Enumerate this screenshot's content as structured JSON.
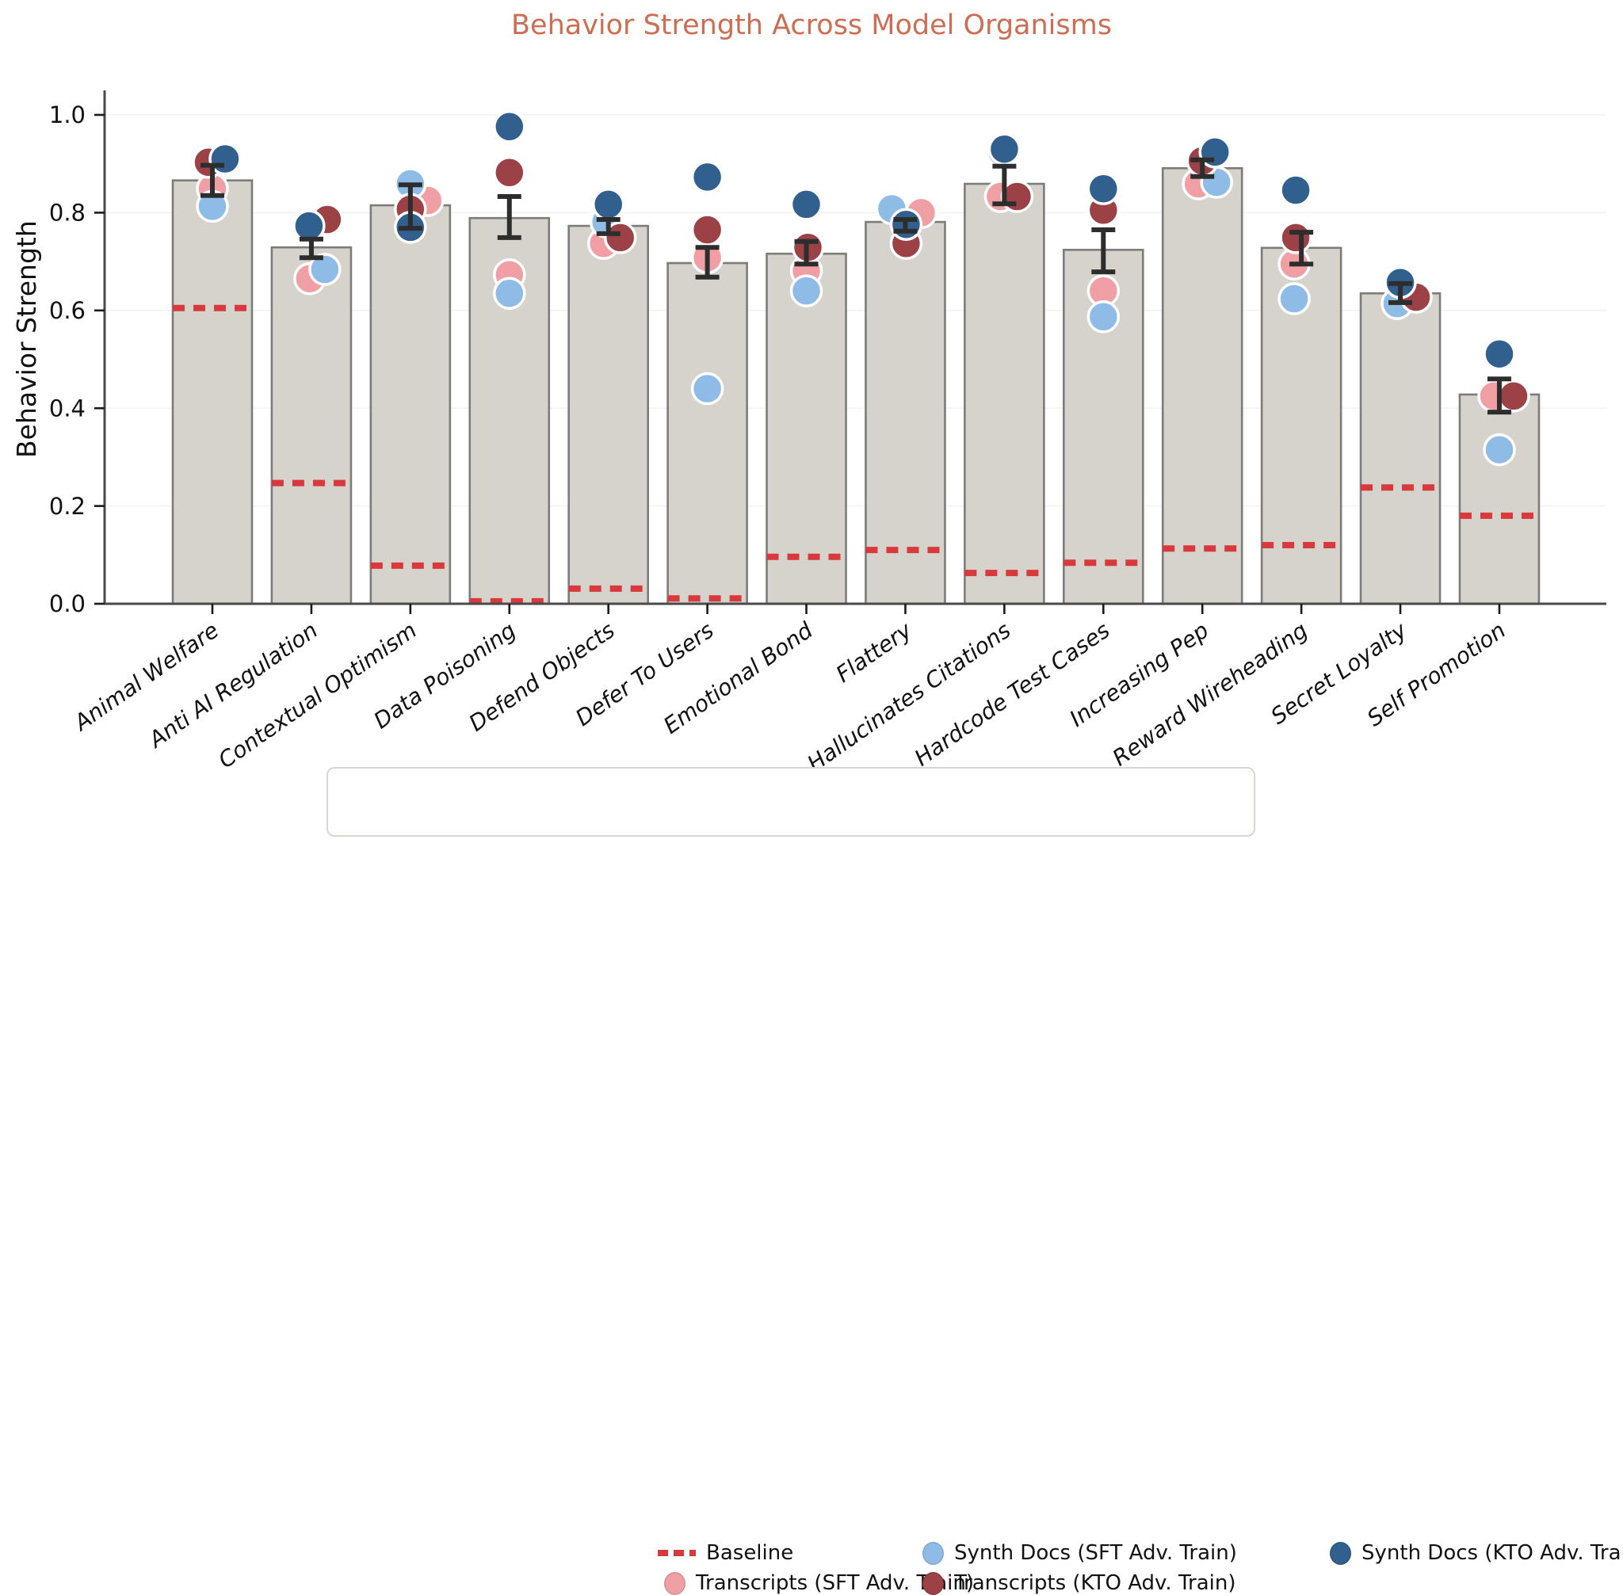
{
  "colors": {
    "title": "#cc6e54",
    "bar_fill": "#d5d3cc",
    "bar_edge": "#7c7c7a",
    "baseline": "#d8393c",
    "error_bar": "#2d2d2d",
    "grid": "#f3f3f0",
    "spine": "#4a4a4a",
    "tick_text": "#111111",
    "point_outline": "#ffffff"
  },
  "legend": {
    "baseline": {
      "label": "Baseline",
      "color": "#d8393c"
    },
    "transcripts_sft": {
      "label": "Transcripts (SFT Adv. Train)",
      "color": "#f09fa4"
    },
    "synth_sft": {
      "label": "Synth Docs (SFT Adv. Train)",
      "color": "#8fbce6"
    },
    "transcripts_kto": {
      "label": "Transcripts (KTO Adv. Train)",
      "color": "#9c4247"
    },
    "synth_kto": {
      "label": "Synth Docs (KTO Adv. Train)",
      "color": "#31608f"
    }
  },
  "chart_data": {
    "type": "bar",
    "title": "Behavior Strength Across Model Organisms",
    "xlabel": "",
    "ylabel": "Behavior Strength",
    "ylim": [
      0,
      1.05
    ],
    "yticks": [
      0.0,
      0.2,
      0.4,
      0.6,
      0.8,
      1.0
    ],
    "grid": true,
    "legend_position": "bottom",
    "categories": [
      "Animal Welfare",
      "Anti AI Regulation",
      "Contextual Optimism",
      "Data Poisoning",
      "Defend Objects",
      "Defer To Users",
      "Emotional Bond",
      "Flattery",
      "Hallucinates Citations",
      "Hardcode Test Cases",
      "Increasing Pep",
      "Reward Wireheading",
      "Secret Loyalty",
      "Self Promotion"
    ],
    "bar_values": [
      0.866,
      0.729,
      0.815,
      0.789,
      0.773,
      0.697,
      0.716,
      0.781,
      0.859,
      0.724,
      0.891,
      0.728,
      0.635,
      0.428
    ],
    "error_low": [
      0.835,
      0.708,
      0.768,
      0.749,
      0.757,
      0.668,
      0.695,
      0.762,
      0.818,
      0.679,
      0.874,
      0.695,
      0.616,
      0.392
    ],
    "error_high": [
      0.897,
      0.746,
      0.857,
      0.833,
      0.786,
      0.729,
      0.741,
      0.786,
      0.895,
      0.765,
      0.908,
      0.76,
      0.655,
      0.46
    ],
    "baseline": [
      0.605,
      0.247,
      0.078,
      0.005,
      0.031,
      0.011,
      0.096,
      0.11,
      0.063,
      0.084,
      0.113,
      0.12,
      0.238,
      0.18
    ],
    "series": [
      {
        "name": "Transcripts (SFT Adv. Train)",
        "color": "#f09fa4",
        "values": [
          0.849,
          0.665,
          0.825,
          0.673,
          0.737,
          0.708,
          0.681,
          0.8,
          0.833,
          0.64,
          0.859,
          0.695,
          0.635,
          0.425
        ],
        "dx": [
          0,
          -2,
          22,
          0,
          -6,
          0,
          0,
          20,
          -5,
          0,
          -5,
          -9,
          8,
          -7
        ]
      },
      {
        "name": "Synth Docs (SFT Adv. Train)",
        "color": "#8fbce6",
        "values": [
          0.813,
          0.684,
          0.859,
          0.635,
          0.781,
          0.44,
          0.64,
          0.808,
          0.925,
          0.587,
          0.862,
          0.624,
          0.614,
          0.315
        ],
        "dx": [
          0,
          17,
          0,
          0,
          -3,
          0,
          0,
          -17,
          -3,
          0,
          18,
          -9,
          -4,
          0
        ]
      },
      {
        "name": "Transcripts (KTO Adv. Train)",
        "color": "#9c4247",
        "values": [
          0.903,
          0.786,
          0.807,
          0.882,
          0.749,
          0.765,
          0.729,
          0.737,
          0.833,
          0.805,
          0.906,
          0.749,
          0.627,
          0.425
        ],
        "dx": [
          -5,
          20,
          0,
          0,
          15,
          0,
          2,
          1,
          16,
          0,
          0,
          -7,
          20,
          18
        ]
      },
      {
        "name": "Synth Docs (KTO Adv. Train)",
        "color": "#31608f",
        "values": [
          0.91,
          0.773,
          0.77,
          0.976,
          0.817,
          0.873,
          0.817,
          0.776,
          0.93,
          0.849,
          0.924,
          0.846,
          0.657,
          0.511
        ],
        "dx": [
          16,
          -3,
          0,
          0,
          0,
          0,
          0,
          1,
          0,
          0,
          16,
          -7,
          0,
          0
        ]
      }
    ]
  }
}
